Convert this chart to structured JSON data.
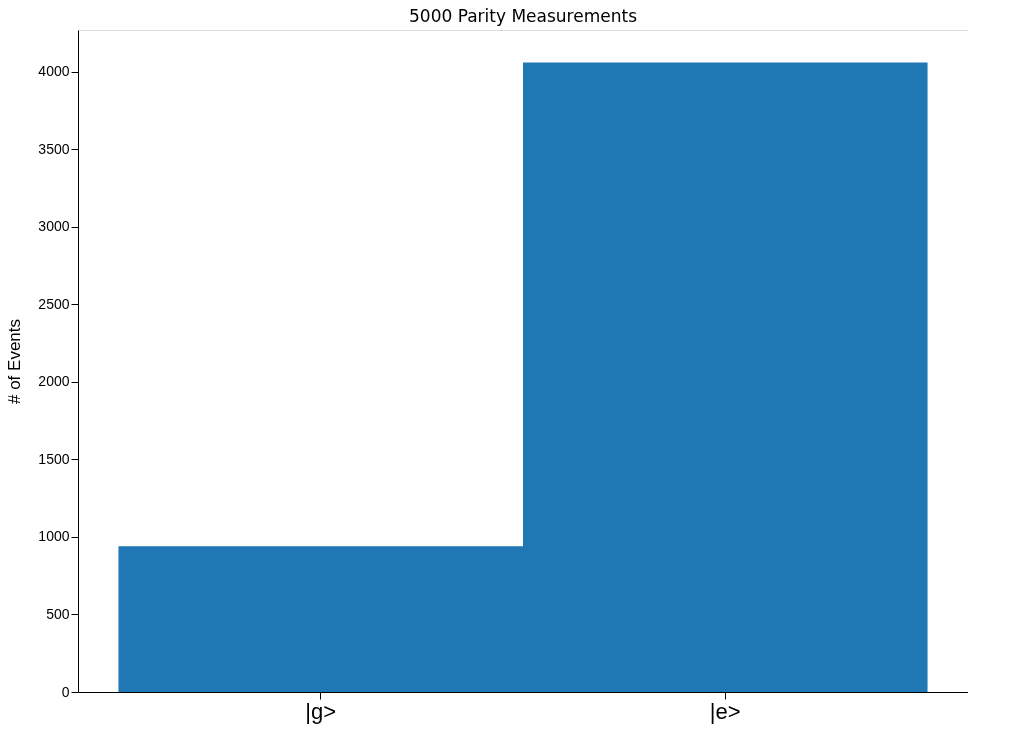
{
  "chart_data": {
    "type": "bar",
    "title": "5000 Parity Measurements",
    "ylabel": "# of Events",
    "categories": [
      "|g>",
      "|e>"
    ],
    "values": [
      940,
      4060
    ],
    "color": "#1f77b4",
    "ylim": [
      0,
      4270
    ],
    "yticks": [
      0,
      500,
      1000,
      1500,
      2000,
      2500,
      3000,
      3500,
      4000
    ],
    "grid": false
  }
}
